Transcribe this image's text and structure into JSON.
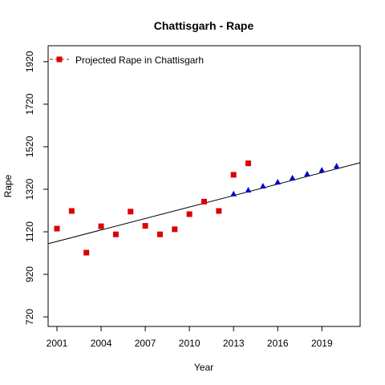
{
  "chart_data": {
    "type": "scatter",
    "title": "Chattisgarh  -  Rape",
    "xlabel": "Year",
    "ylabel": "Rape",
    "xlim": [
      2000.4,
      2021.6
    ],
    "ylim": [
      675,
      1995
    ],
    "x_ticks": [
      2001,
      2004,
      2007,
      2010,
      2013,
      2016,
      2019
    ],
    "y_ticks": [
      720,
      920,
      1120,
      1320,
      1520,
      1720,
      1920
    ],
    "legend": {
      "position": "top-left",
      "label": "Projected Rape  in  Chattisgarh"
    },
    "series": [
      {
        "name": "Projected Rape  in  Chattisgarh",
        "marker": "square",
        "color": "#dd0000",
        "points": [
          {
            "x": 2001,
            "y": 1135
          },
          {
            "x": 2002,
            "y": 1218
          },
          {
            "x": 2003,
            "y": 1022
          },
          {
            "x": 2004,
            "y": 1146
          },
          {
            "x": 2005,
            "y": 1108
          },
          {
            "x": 2006,
            "y": 1215
          },
          {
            "x": 2007,
            "y": 1148
          },
          {
            "x": 2008,
            "y": 1108
          },
          {
            "x": 2009,
            "y": 1132
          },
          {
            "x": 2010,
            "y": 1203
          },
          {
            "x": 2011,
            "y": 1262
          },
          {
            "x": 2012,
            "y": 1218
          },
          {
            "x": 2013,
            "y": 1388
          },
          {
            "x": 2014,
            "y": 1442
          }
        ]
      },
      {
        "marker": "triangle",
        "color": "#0000cc",
        "points": [
          {
            "x": 2013,
            "y": 1298
          },
          {
            "x": 2014,
            "y": 1316
          },
          {
            "x": 2015,
            "y": 1335
          },
          {
            "x": 2016,
            "y": 1354
          },
          {
            "x": 2017,
            "y": 1373
          },
          {
            "x": 2018,
            "y": 1392
          },
          {
            "x": 2019,
            "y": 1410
          },
          {
            "x": 2020,
            "y": 1429
          }
        ]
      }
    ],
    "trend_line": {
      "x": [
        2000.4,
        2021.6
      ],
      "y": [
        1064,
        1445
      ]
    },
    "grid": false
  }
}
